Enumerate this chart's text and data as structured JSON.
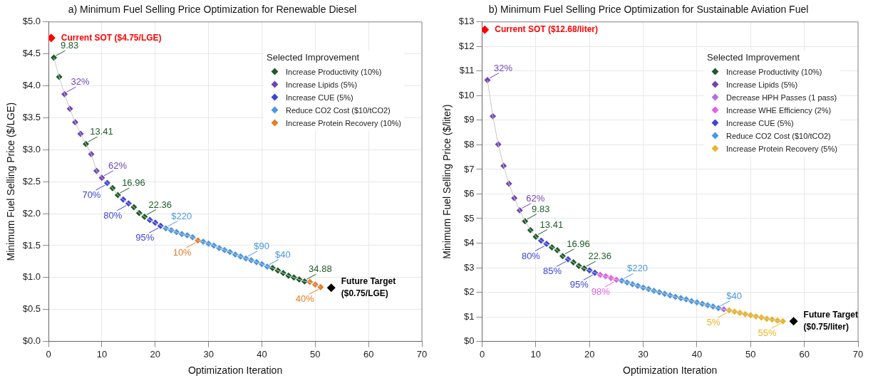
{
  "chart_data": [
    {
      "type": "scatter",
      "title": "a) Minimum Fuel Selling Price Optimization for Renewable Diesel",
      "xlabel": "Optimization Iteration",
      "ylabel": "Minimum Fuel Selling Price ($/LGE)",
      "xlim": [
        0,
        70
      ],
      "xticks": [
        0,
        10,
        20,
        30,
        40,
        50,
        60,
        70
      ],
      "ylim": [
        0,
        5
      ],
      "yticks": [
        {
          "value": 0,
          "label": "$0.0"
        },
        {
          "value": 0.5,
          "label": "$0.5"
        },
        {
          "value": 1,
          "label": "$1.0"
        },
        {
          "value": 1.5,
          "label": "$1.5"
        },
        {
          "value": 2,
          "label": "$2.0"
        },
        {
          "value": 2.5,
          "label": "$2.5"
        },
        {
          "value": 3,
          "label": "$3.0"
        },
        {
          "value": 3.5,
          "label": "$3.5"
        },
        {
          "value": 4,
          "label": "$4.0"
        },
        {
          "value": 4.5,
          "label": "$4.5"
        },
        {
          "value": 5,
          "label": "$5.0"
        }
      ],
      "grid": true,
      "marker": "diamond",
      "legend": "top right",
      "legend_title": "Selected Improvement",
      "series": [
        {
          "type": "line",
          "color": "#c8c8c8",
          "marker": "none",
          "x": [
            1,
            2,
            3,
            4,
            5,
            6,
            7,
            8,
            9,
            10,
            11,
            12,
            13,
            14,
            15,
            16,
            17,
            18,
            19,
            20,
            21,
            22,
            23,
            24,
            25,
            26,
            27,
            28,
            29,
            30,
            31,
            32,
            33,
            34,
            35,
            36,
            37,
            38,
            39,
            40,
            41,
            42,
            43,
            44,
            45,
            46,
            47,
            48,
            49,
            50,
            51
          ],
          "values": [
            4.44,
            4.14,
            3.87,
            3.64,
            3.43,
            3.25,
            3.09,
            2.93,
            2.67,
            2.56,
            2.48,
            2.4,
            2.29,
            2.22,
            2.16,
            2.1,
            2.01,
            1.95,
            1.9,
            1.86,
            1.81,
            1.77,
            1.74,
            1.71,
            1.68,
            1.66,
            1.63,
            1.58,
            1.56,
            1.53,
            1.5,
            1.46,
            1.43,
            1.4,
            1.36,
            1.33,
            1.3,
            1.27,
            1.24,
            1.21,
            1.17,
            1.15,
            1.11,
            1.07,
            1.03,
            1.0,
            0.97,
            0.94,
            0.93,
            0.89,
            0.85
          ]
        },
        {
          "name": "Increase Productivity (10%)",
          "color": "#1e5b2a",
          "x": [
            1,
            2,
            7,
            12,
            13,
            16,
            17,
            18,
            42,
            43,
            44,
            45,
            46,
            47,
            48
          ],
          "values": [
            4.44,
            4.14,
            3.09,
            2.4,
            2.29,
            2.1,
            2.01,
            1.95,
            1.15,
            1.11,
            1.07,
            1.03,
            1.0,
            0.97,
            0.94
          ]
        },
        {
          "name": "Increase Lipids (5%)",
          "color": "#7043b5",
          "x": [
            3,
            4,
            5,
            6,
            8,
            9,
            10
          ],
          "values": [
            3.87,
            3.64,
            3.43,
            3.25,
            2.93,
            2.67,
            2.56
          ]
        },
        {
          "name": "Increase CUE (5%)",
          "color": "#3b45d6",
          "x": [
            11,
            14,
            15,
            19,
            20,
            21
          ],
          "values": [
            2.48,
            2.22,
            2.16,
            1.9,
            1.86,
            1.81
          ]
        },
        {
          "name": "Reduce CO2 Cost ($10/tCO2)",
          "color": "#4a96e0",
          "x": [
            22,
            23,
            24,
            25,
            26,
            27,
            29,
            30,
            31,
            32,
            33,
            34,
            35,
            36,
            37,
            38,
            39,
            40,
            41
          ],
          "values": [
            1.77,
            1.74,
            1.71,
            1.68,
            1.66,
            1.63,
            1.56,
            1.53,
            1.5,
            1.46,
            1.43,
            1.4,
            1.36,
            1.33,
            1.3,
            1.27,
            1.24,
            1.21,
            1.17
          ]
        },
        {
          "name": "Increase Protein Recovery (10%)",
          "color": "#e57c29",
          "x": [
            28,
            49,
            50,
            51
          ],
          "values": [
            1.58,
            0.93,
            0.89,
            0.85
          ]
        },
        {
          "color": "#ff0000",
          "x": [
            0.5
          ],
          "values": [
            4.75
          ]
        },
        {
          "color": "#000000",
          "x": [
            53
          ],
          "values": [
            0.84
          ]
        }
      ],
      "annotations": [
        {
          "text": "Current SOT ($4.75/LGE)",
          "x": 0.5,
          "y": 4.75
        },
        {
          "text": "Future Target\n($0.75/LGE)",
          "x": 53,
          "y": 0.84
        },
        {
          "text": "9.83",
          "x": 1,
          "y": 4.44
        },
        {
          "text": "32%",
          "x": 3,
          "y": 3.87
        },
        {
          "text": "13.41",
          "x": 7,
          "y": 3.09
        },
        {
          "text": "62%",
          "x": 10,
          "y": 2.56
        },
        {
          "text": "70%",
          "x": 11,
          "y": 2.48
        },
        {
          "text": "16.96",
          "x": 13,
          "y": 2.29
        },
        {
          "text": "80%",
          "x": 15,
          "y": 2.16
        },
        {
          "text": "22.36",
          "x": 18,
          "y": 1.95
        },
        {
          "text": "95%",
          "x": 21,
          "y": 1.81
        },
        {
          "text": "$220",
          "x": 22,
          "y": 1.77
        },
        {
          "text": "10%",
          "x": 28,
          "y": 1.58
        },
        {
          "text": "$90",
          "x": 37,
          "y": 1.3
        },
        {
          "text": "$40",
          "x": 41,
          "y": 1.17
        },
        {
          "text": "34.88",
          "x": 48,
          "y": 0.94
        },
        {
          "text": "40%",
          "x": 51,
          "y": 0.85
        }
      ]
    },
    {
      "type": "scatter",
      "title": "b) Minimum Fuel Selling Price Optimization for Sustainable Aviation Fuel",
      "xlabel": "Optimization Iteration",
      "ylabel": "Minimum Fuel Selling Price ($/liter)",
      "xlim": [
        0,
        70
      ],
      "xticks": [
        0,
        10,
        20,
        30,
        40,
        50,
        60,
        70
      ],
      "ylim": [
        0,
        13
      ],
      "yticks": [
        {
          "value": 0,
          "label": "$0"
        },
        {
          "value": 1,
          "label": "$1"
        },
        {
          "value": 2,
          "label": "$2"
        },
        {
          "value": 3,
          "label": "$3"
        },
        {
          "value": 4,
          "label": "$4"
        },
        {
          "value": 5,
          "label": "$5"
        },
        {
          "value": 6,
          "label": "$6"
        },
        {
          "value": 7,
          "label": "$7"
        },
        {
          "value": 8,
          "label": "$8"
        },
        {
          "value": 9,
          "label": "$9"
        },
        {
          "value": 10,
          "label": "$10"
        },
        {
          "value": 11,
          "label": "$11"
        },
        {
          "value": 12,
          "label": "$12"
        },
        {
          "value": 13,
          "label": "$13"
        }
      ],
      "grid": true,
      "marker": "diamond",
      "legend": "top right",
      "legend_title": "Selected Improvement",
      "series": [
        {
          "type": "line",
          "color": "#c8c8c8",
          "marker": "none",
          "x": [
            1,
            2,
            3,
            4,
            5,
            6,
            7,
            8,
            9,
            10,
            11,
            12,
            13,
            14,
            15,
            16,
            17,
            18,
            19,
            20,
            21,
            22,
            23,
            24,
            25,
            26,
            27,
            28,
            29,
            30,
            31,
            32,
            33,
            34,
            35,
            36,
            37,
            38,
            39,
            40,
            41,
            42,
            43,
            44,
            45,
            46,
            47,
            48,
            49,
            50,
            51,
            52,
            53,
            54,
            55,
            56
          ],
          "values": [
            10.63,
            9.16,
            8.02,
            7.14,
            6.42,
            5.83,
            5.33,
            4.89,
            4.53,
            4.26,
            4.1,
            3.97,
            3.83,
            3.71,
            3.47,
            3.34,
            3.22,
            3.07,
            2.97,
            2.89,
            2.79,
            2.71,
            2.65,
            2.58,
            2.51,
            2.47,
            2.4,
            2.33,
            2.26,
            2.19,
            2.13,
            2.06,
            2.0,
            1.94,
            1.87,
            1.81,
            1.76,
            1.71,
            1.64,
            1.59,
            1.53,
            1.47,
            1.42,
            1.36,
            1.31,
            1.26,
            1.21,
            1.16,
            1.11,
            1.07,
            1.02,
            0.97,
            0.92,
            0.89,
            0.85,
            0.82
          ]
        },
        {
          "name": "Increase Productivity (10%)",
          "color": "#1e5b2a",
          "x": [
            8,
            9,
            10,
            13,
            14,
            15,
            17,
            18,
            19
          ],
          "values": [
            4.89,
            4.53,
            4.26,
            3.83,
            3.71,
            3.47,
            3.22,
            3.07,
            2.97
          ]
        },
        {
          "name": "Increase Lipids (5%)",
          "color": "#7043b5",
          "x": [
            1,
            2,
            3,
            4,
            5,
            6,
            7
          ],
          "values": [
            10.63,
            9.16,
            8.02,
            7.14,
            6.42,
            5.83,
            5.33
          ]
        },
        {
          "name": "Decrease HPH Passes (1 pass)",
          "color": "#b26fe0",
          "x": [
            45
          ],
          "values": [
            1.31
          ]
        },
        {
          "name": "Increase WHE Efficiency (2%)",
          "color": "#e35fe5",
          "x": [
            22,
            23,
            24,
            25
          ],
          "values": [
            2.71,
            2.65,
            2.58,
            2.51
          ]
        },
        {
          "name": "Increase CUE (5%)",
          "color": "#3b45d6",
          "x": [
            11,
            12,
            16,
            20,
            21
          ],
          "values": [
            4.1,
            3.97,
            3.34,
            2.89,
            2.79
          ]
        },
        {
          "name": "Reduce CO2 Cost ($10/tCO2)",
          "color": "#4a96e0",
          "x": [
            26,
            27,
            28,
            29,
            30,
            31,
            32,
            33,
            34,
            35,
            36,
            37,
            38,
            39,
            40,
            41,
            42,
            43,
            44
          ],
          "values": [
            2.47,
            2.4,
            2.33,
            2.26,
            2.19,
            2.13,
            2.06,
            2.0,
            1.94,
            1.87,
            1.81,
            1.76,
            1.71,
            1.64,
            1.59,
            1.53,
            1.47,
            1.42,
            1.36
          ]
        },
        {
          "name": "Increase Protein Recovery (5%)",
          "color": "#ecb322",
          "x": [
            46,
            47,
            48,
            49,
            50,
            51,
            52,
            53,
            54,
            55,
            56
          ],
          "values": [
            1.26,
            1.21,
            1.16,
            1.11,
            1.07,
            1.02,
            0.97,
            0.92,
            0.89,
            0.85,
            0.82
          ]
        },
        {
          "color": "#ff0000",
          "x": [
            0.5
          ],
          "values": [
            12.68
          ]
        },
        {
          "color": "#000000",
          "x": [
            58
          ],
          "values": [
            0.82
          ]
        }
      ],
      "annotations": [
        {
          "text": "Current SOT ($12.68/liter)",
          "x": 0.5,
          "y": 12.68
        },
        {
          "text": "Future Target\n($0.75/liter)",
          "x": 58,
          "y": 0.82
        },
        {
          "text": "32%",
          "x": 1,
          "y": 10.63
        },
        {
          "text": "62%",
          "x": 7,
          "y": 5.33
        },
        {
          "text": "9.83",
          "x": 8,
          "y": 4.89
        },
        {
          "text": "13.41",
          "x": 10,
          "y": 4.26
        },
        {
          "text": "80%",
          "x": 12,
          "y": 3.97
        },
        {
          "text": "16.96",
          "x": 15,
          "y": 3.47
        },
        {
          "text": "85%",
          "x": 16,
          "y": 3.34
        },
        {
          "text": "22.36",
          "x": 19,
          "y": 2.97
        },
        {
          "text": "95%",
          "x": 21,
          "y": 2.79
        },
        {
          "text": "98%",
          "x": 25,
          "y": 2.51
        },
        {
          "text": "$220",
          "x": 26,
          "y": 2.47
        },
        {
          "text": "$40",
          "x": 44,
          "y": 1.36
        },
        {
          "text": "5%",
          "x": 46,
          "y": 1.26
        },
        {
          "text": "55%",
          "x": 56,
          "y": 0.82
        }
      ]
    }
  ]
}
